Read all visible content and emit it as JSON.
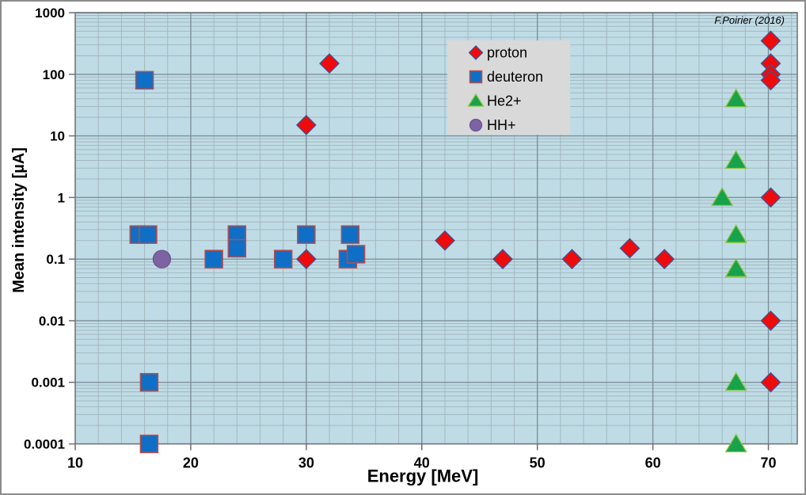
{
  "chart_data": {
    "type": "scatter",
    "title": "",
    "xlabel": "Energy [MeV]",
    "ylabel": "Mean intensity [µA]",
    "annotation": "F.Poirier (2016)",
    "x_axis": {
      "scale": "linear",
      "min": 10,
      "max": 72.5,
      "ticks": [
        10,
        20,
        30,
        40,
        50,
        60,
        70
      ],
      "tick_labels": [
        "10",
        "20",
        "30",
        "40",
        "50",
        "60",
        "70"
      ],
      "minor_step": 2
    },
    "y_axis": {
      "scale": "log",
      "min": 0.0001,
      "max": 1000,
      "ticks": [
        1000,
        100,
        10,
        1,
        0.1,
        0.01,
        0.001,
        0.0001
      ],
      "tick_labels": [
        "1000",
        "100",
        "10",
        "1",
        "0.1",
        "0.01",
        "0.001",
        "0.0001"
      ]
    },
    "grid": {
      "major": true,
      "minor": true
    },
    "legend": {
      "position": "upper-middle",
      "bg": "#D9D9D9",
      "entries": [
        "proton",
        "deuteron",
        "He2+",
        "HH+"
      ]
    },
    "series": [
      {
        "name": "proton",
        "marker": "diamond",
        "fill": "#EE0B0B",
        "stroke": "#3A539B",
        "points": [
          [
            30,
            15
          ],
          [
            32,
            150
          ],
          [
            30,
            0.1
          ],
          [
            42,
            0.2
          ],
          [
            47,
            0.1
          ],
          [
            53,
            0.1
          ],
          [
            58,
            0.15
          ],
          [
            61,
            0.1
          ],
          [
            70.2,
            350
          ],
          [
            70.2,
            150
          ],
          [
            70.2,
            100
          ],
          [
            70.2,
            80
          ],
          [
            70.2,
            1
          ],
          [
            70.2,
            0.01
          ],
          [
            70.2,
            0.001
          ]
        ]
      },
      {
        "name": "deuteron",
        "marker": "square",
        "fill": "#0F6FC6",
        "stroke": "#BE4B48",
        "points": [
          [
            16,
            80
          ],
          [
            15.5,
            0.25
          ],
          [
            16.3,
            0.25
          ],
          [
            22,
            0.1
          ],
          [
            24,
            0.25
          ],
          [
            24,
            0.15
          ],
          [
            28,
            0.1
          ],
          [
            30,
            0.25
          ],
          [
            33.8,
            0.25
          ],
          [
            33.6,
            0.1
          ],
          [
            34.3,
            0.12
          ],
          [
            16.4,
            0.001
          ],
          [
            16.4,
            0.0001
          ]
        ]
      },
      {
        "name": "He2+",
        "marker": "triangle",
        "fill": "#17A24B",
        "stroke": "#8CC540",
        "points": [
          [
            67.2,
            40
          ],
          [
            67.2,
            4
          ],
          [
            66,
            1
          ],
          [
            67.2,
            0.25
          ],
          [
            67.2,
            0.07
          ],
          [
            67.2,
            0.001
          ],
          [
            67.2,
            0.0001
          ]
        ]
      },
      {
        "name": "HH+",
        "marker": "circle",
        "fill": "#7E63A3",
        "stroke": "#6A5390",
        "points": [
          [
            17.5,
            0.1
          ]
        ]
      }
    ],
    "colors": {
      "plot_bg": "#BFDCE6",
      "grid_minor": "#A3B7BE",
      "grid_major": "#7E9098",
      "axis": "#6E6E6E",
      "outer_border": "#8C8C8C",
      "text": "#000000"
    }
  }
}
